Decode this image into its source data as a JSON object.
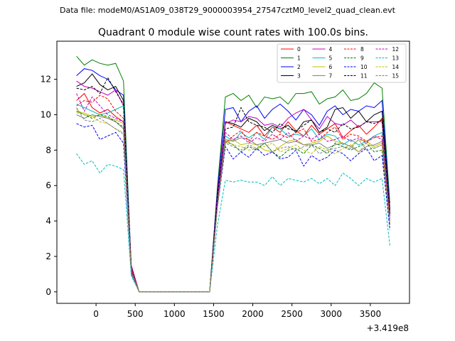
{
  "figure": {
    "suptitle": "Data file: modeM0/AS1A09_038T29_9000003954_27547cztM0_level2_quad_clean.evt"
  },
  "chart_data": {
    "type": "line",
    "title": "Quadrant 0 module wise count rates with 100.0s bins.",
    "xlabel": "",
    "ylabel": "",
    "x_offset_label": "+3.419e8",
    "xlim": [
      -500,
      4000
    ],
    "ylim": [
      -0.65,
      14.15
    ],
    "xticks": [
      0,
      500,
      1000,
      1500,
      2000,
      2500,
      3000,
      3500
    ],
    "yticks": [
      0,
      2,
      4,
      6,
      8,
      10,
      12
    ],
    "grid": false,
    "legend_position": "top-right",
    "legend_columns": 4,
    "x": [
      -250,
      -150,
      -50,
      50,
      150,
      250,
      350,
      450,
      550,
      650,
      750,
      850,
      950,
      1050,
      1150,
      1250,
      1350,
      1450,
      1550,
      1650,
      1750,
      1850,
      1950,
      2050,
      2150,
      2250,
      2350,
      2450,
      2550,
      2650,
      2750,
      2850,
      2950,
      3050,
      3150,
      3250,
      3350,
      3450,
      3550,
      3650,
      3750
    ],
    "series": [
      {
        "name": "0",
        "color": "#ff0000",
        "dash": "solid",
        "values": [
          10.8,
          11.2,
          10.4,
          10.1,
          10.3,
          9.9,
          9.6,
          1.5,
          0,
          0,
          0,
          0,
          0,
          0,
          0,
          0,
          0,
          0,
          5.0,
          9.6,
          9.4,
          9.2,
          9.0,
          9.4,
          8.8,
          9.3,
          9.0,
          9.6,
          9.1,
          8.8,
          9.4,
          8.9,
          9.2,
          9.5,
          8.7,
          9.1,
          9.4,
          8.9,
          9.3,
          9.8,
          4.5
        ]
      },
      {
        "name": "1",
        "color": "#008000",
        "dash": "solid",
        "values": [
          13.3,
          12.8,
          13.1,
          12.9,
          12.8,
          12.9,
          11.9,
          1.3,
          0,
          0,
          0,
          0,
          0,
          0,
          0,
          0,
          0,
          0,
          6.0,
          11.0,
          11.2,
          10.8,
          11.1,
          10.4,
          11.0,
          10.9,
          11.0,
          10.6,
          11.2,
          11.2,
          11.3,
          10.6,
          10.9,
          11.0,
          11.4,
          10.8,
          10.9,
          11.2,
          11.8,
          11.5,
          5.0
        ]
      },
      {
        "name": "2",
        "color": "#0000ff",
        "dash": "solid",
        "values": [
          12.2,
          12.6,
          12.5,
          12.2,
          12.0,
          11.4,
          11.1,
          1.4,
          0,
          0,
          0,
          0,
          0,
          0,
          0,
          0,
          0,
          0,
          5.8,
          10.3,
          10.4,
          9.6,
          10.2,
          10.5,
          9.8,
          10.3,
          10.6,
          10.2,
          9.7,
          10.3,
          10.0,
          9.4,
          10.2,
          10.5,
          10.0,
          10.3,
          10.2,
          10.5,
          10.4,
          10.8,
          4.7
        ]
      },
      {
        "name": "3",
        "color": "#000000",
        "dash": "solid",
        "values": [
          11.6,
          11.8,
          12.3,
          11.7,
          11.4,
          11.6,
          10.8,
          1.2,
          0,
          0,
          0,
          0,
          0,
          0,
          0,
          0,
          0,
          0,
          5.5,
          9.6,
          9.5,
          9.3,
          9.8,
          9.6,
          9.1,
          9.4,
          9.2,
          9.4,
          9.0,
          9.6,
          9.7,
          9.0,
          9.3,
          10.3,
          10.4,
          9.8,
          10.2,
          9.6,
          10.0,
          10.2,
          4.6
        ]
      },
      {
        "name": "4",
        "color": "#bf00bf",
        "dash": "solid",
        "values": [
          11.9,
          11.6,
          11.5,
          11.3,
          11.1,
          11.4,
          10.5,
          1.3,
          0,
          0,
          0,
          0,
          0,
          0,
          0,
          0,
          0,
          0,
          5.5,
          9.5,
          9.7,
          9.6,
          9.9,
          9.8,
          9.4,
          9.5,
          9.3,
          9.8,
          10.1,
          10.3,
          9.7,
          9.2,
          9.9,
          9.5,
          9.4,
          9.7,
          9.3,
          9.6,
          9.6,
          9.6,
          4.5
        ]
      },
      {
        "name": "5",
        "color": "#00bfbf",
        "dash": "solid",
        "values": [
          10.6,
          10.4,
          10.2,
          10.0,
          10.1,
          10.3,
          10.5,
          1.3,
          0,
          0,
          0,
          0,
          0,
          0,
          0,
          0,
          0,
          0,
          5.0,
          8.8,
          8.5,
          9.0,
          8.7,
          9.0,
          8.6,
          9.3,
          9.2,
          8.8,
          8.9,
          8.8,
          9.2,
          8.6,
          8.9,
          8.8,
          8.3,
          8.6,
          8.3,
          8.5,
          8.8,
          9.0,
          4.3
        ]
      },
      {
        "name": "6",
        "color": "#bfbf00",
        "dash": "solid",
        "values": [
          10.1,
          10.1,
          9.9,
          10.0,
          9.8,
          9.7,
          9.5,
          1.2,
          0,
          0,
          0,
          0,
          0,
          0,
          0,
          0,
          0,
          0,
          5.0,
          8.4,
          8.6,
          8.3,
          8.4,
          8.3,
          8.0,
          7.9,
          8.2,
          8.5,
          8.6,
          8.3,
          8.4,
          8.5,
          8.8,
          8.5,
          8.4,
          8.2,
          8.6,
          8.5,
          8.2,
          8.4,
          4.0
        ]
      },
      {
        "name": "7",
        "color": "#808080",
        "dash": "solid",
        "values": [
          10.0,
          9.8,
          10.0,
          9.9,
          9.8,
          9.6,
          9.2,
          1.1,
          0,
          0,
          0,
          0,
          0,
          0,
          0,
          0,
          0,
          0,
          5.0,
          8.6,
          8.5,
          8.7,
          8.6,
          8.3,
          8.4,
          8.5,
          8.6,
          8.4,
          8.5,
          8.3,
          8.3,
          8.4,
          8.1,
          8.3,
          8.4,
          8.2,
          7.9,
          8.2,
          8.3,
          8.5,
          3.8
        ]
      },
      {
        "name": "8",
        "color": "#ff0000",
        "dash": "dashed",
        "values": [
          10.5,
          10.8,
          10.7,
          11.1,
          10.9,
          10.2,
          9.8,
          1.3,
          0,
          0,
          0,
          0,
          0,
          0,
          0,
          0,
          0,
          0,
          5.0,
          8.4,
          8.8,
          9.1,
          8.5,
          9.0,
          8.8,
          8.6,
          8.9,
          8.7,
          9.0,
          9.2,
          8.5,
          8.6,
          9.0,
          9.3,
          8.6,
          8.9,
          8.8,
          8.5,
          8.7,
          8.8,
          4.2
        ]
      },
      {
        "name": "9",
        "color": "#008000",
        "dash": "dashed",
        "values": [
          10.2,
          10.0,
          9.8,
          10.0,
          9.9,
          9.6,
          9.3,
          1.1,
          0,
          0,
          0,
          0,
          0,
          0,
          0,
          0,
          0,
          0,
          5.0,
          8.5,
          8.3,
          7.9,
          8.2,
          8.0,
          8.4,
          7.9,
          7.6,
          8.0,
          8.1,
          7.8,
          8.3,
          8.1,
          7.8,
          8.4,
          8.2,
          8.0,
          8.2,
          8.4,
          7.9,
          8.0,
          3.7
        ]
      },
      {
        "name": "10",
        "color": "#0000ff",
        "dash": "dashed",
        "values": [
          9.5,
          9.3,
          9.4,
          8.6,
          8.8,
          9.0,
          8.4,
          1.0,
          0,
          0,
          0,
          0,
          0,
          0,
          0,
          0,
          0,
          0,
          4.8,
          8.2,
          7.5,
          7.9,
          7.6,
          8.1,
          7.7,
          7.9,
          7.5,
          7.6,
          8.0,
          7.1,
          7.7,
          7.4,
          7.6,
          8.0,
          7.8,
          7.4,
          7.8,
          8.1,
          7.4,
          7.7,
          3.5
        ]
      },
      {
        "name": "11",
        "color": "#000000",
        "dash": "dashed",
        "values": [
          11.5,
          11.4,
          11.6,
          11.2,
          12.1,
          11.3,
          10.6,
          1.2,
          0,
          0,
          0,
          0,
          0,
          0,
          0,
          0,
          0,
          0,
          5.4,
          9.2,
          9.3,
          10.4,
          9.6,
          9.4,
          9.3,
          9.0,
          9.5,
          9.2,
          9.1,
          9.4,
          9.7,
          9.0,
          9.2,
          9.0,
          9.5,
          9.2,
          9.3,
          9.6,
          9.5,
          9.7,
          4.4
        ]
      },
      {
        "name": "12",
        "color": "#bf00bf",
        "dash": "dashed",
        "values": [
          11.2,
          10.2,
          11.0,
          10.5,
          10.0,
          9.8,
          9.6,
          1.2,
          0,
          0,
          0,
          0,
          0,
          0,
          0,
          0,
          0,
          0,
          5.0,
          9.0,
          8.6,
          8.8,
          8.4,
          8.7,
          8.5,
          8.9,
          8.6,
          9.0,
          8.5,
          8.8,
          8.6,
          8.9,
          8.5,
          8.6,
          8.8,
          8.5,
          8.7,
          8.4,
          8.8,
          8.6,
          4.1
        ]
      },
      {
        "name": "13",
        "color": "#00bfbf",
        "dash": "dashed",
        "values": [
          7.8,
          7.2,
          7.4,
          6.7,
          7.2,
          7.1,
          6.9,
          0.9,
          0,
          0,
          0,
          0,
          0,
          0,
          0,
          0,
          0,
          0,
          3.8,
          6.3,
          6.2,
          6.3,
          6.2,
          6.2,
          6.0,
          6.5,
          6.0,
          6.4,
          6.3,
          6.2,
          6.4,
          6.1,
          6.4,
          6.0,
          6.7,
          6.4,
          6.0,
          6.4,
          6.2,
          6.4,
          2.6
        ]
      },
      {
        "name": "14",
        "color": "#bfbf00",
        "dash": "dashed",
        "values": [
          10.3,
          10.0,
          9.9,
          9.6,
          9.5,
          9.2,
          9.0,
          1.1,
          0,
          0,
          0,
          0,
          0,
          0,
          0,
          0,
          0,
          0,
          4.8,
          8.6,
          8.3,
          8.2,
          8.0,
          8.1,
          8.2,
          8.4,
          7.9,
          8.1,
          8.3,
          8.0,
          7.8,
          8.2,
          8.0,
          7.8,
          8.1,
          8.3,
          7.9,
          8.4,
          8.1,
          8.3,
          3.9
        ]
      },
      {
        "name": "15",
        "color": "#808080",
        "dash": "dashed",
        "values": [
          10.4,
          9.7,
          9.6,
          9.8,
          9.5,
          9.2,
          8.9,
          1.1,
          0,
          0,
          0,
          0,
          0,
          0,
          0,
          0,
          0,
          0,
          4.9,
          8.4,
          8.2,
          8.0,
          8.3,
          8.1,
          8.4,
          7.9,
          8.1,
          8.2,
          8.0,
          8.2,
          8.3,
          7.8,
          8.0,
          8.1,
          8.2,
          8.1,
          8.6,
          8.0,
          8.1,
          8.3,
          3.8
        ]
      }
    ]
  }
}
